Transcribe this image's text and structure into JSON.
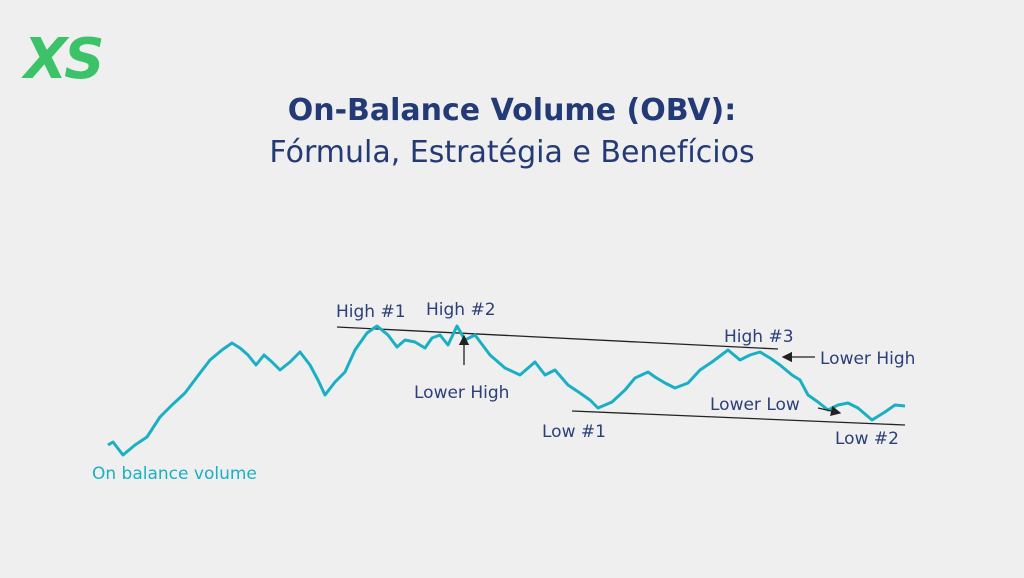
{
  "logo": "XS",
  "title": "On-Balance Volume (OBV):",
  "subtitle": "Fórmula, Estratégia e Benefícios",
  "annotations": {
    "high1": "High #1",
    "high2": "High #2",
    "high3": "High #3",
    "lower_high_1": "Lower High",
    "lower_high_2": "Lower High",
    "low1": "Low #1",
    "low2": "Low #2",
    "lower_low": "Lower Low",
    "series_label": "On balance volume"
  }
}
